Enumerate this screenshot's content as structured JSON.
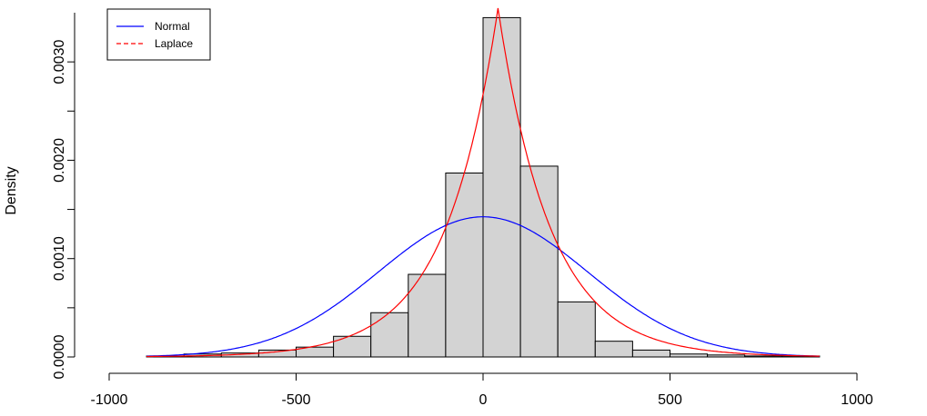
{
  "chart_data": {
    "type": "bar",
    "ylabel": "Density",
    "xlim": [
      -1000,
      1000
    ],
    "ylim": [
      0,
      0.0035
    ],
    "grid": false,
    "legend_position": "top-left",
    "x_tick_labels": [
      "-1000",
      "-500",
      "0",
      "500",
      "1000"
    ],
    "x_ticks": [
      -1000,
      -500,
      0,
      500,
      1000
    ],
    "y_tick_labels": [
      "0.0000",
      "0.0010",
      "0.0020",
      "0.0030"
    ],
    "y_ticks": [
      0,
      0.001,
      0.002,
      0.003
    ],
    "y_minor_ticks": [
      0.0005,
      0.0015,
      0.0025
    ],
    "histogram": {
      "bin_edges": [
        -1000,
        -900,
        -800,
        -700,
        -600,
        -500,
        -400,
        -300,
        -200,
        -100,
        0,
        100,
        200,
        300,
        400,
        500,
        600,
        700,
        800,
        900,
        1000
      ],
      "density": [
        0.0,
        1e-05,
        3e-05,
        4e-05,
        7e-05,
        0.0001,
        0.00021,
        0.00045,
        0.00084,
        0.00187,
        0.00345,
        0.00194,
        0.00056,
        0.00016,
        7e-05,
        3e-05,
        2e-05,
        1e-05,
        1e-05,
        0.0
      ],
      "fill": "#d3d3d3"
    },
    "series": [
      {
        "name": "Normal",
        "kind": "normal",
        "mean": 0,
        "sd": 280,
        "color": "#0000ff",
        "dash": "solid"
      },
      {
        "name": "Laplace",
        "kind": "laplace",
        "location": 40,
        "scale": 141,
        "color": "#ff0000",
        "dash": "dashed"
      }
    ]
  }
}
